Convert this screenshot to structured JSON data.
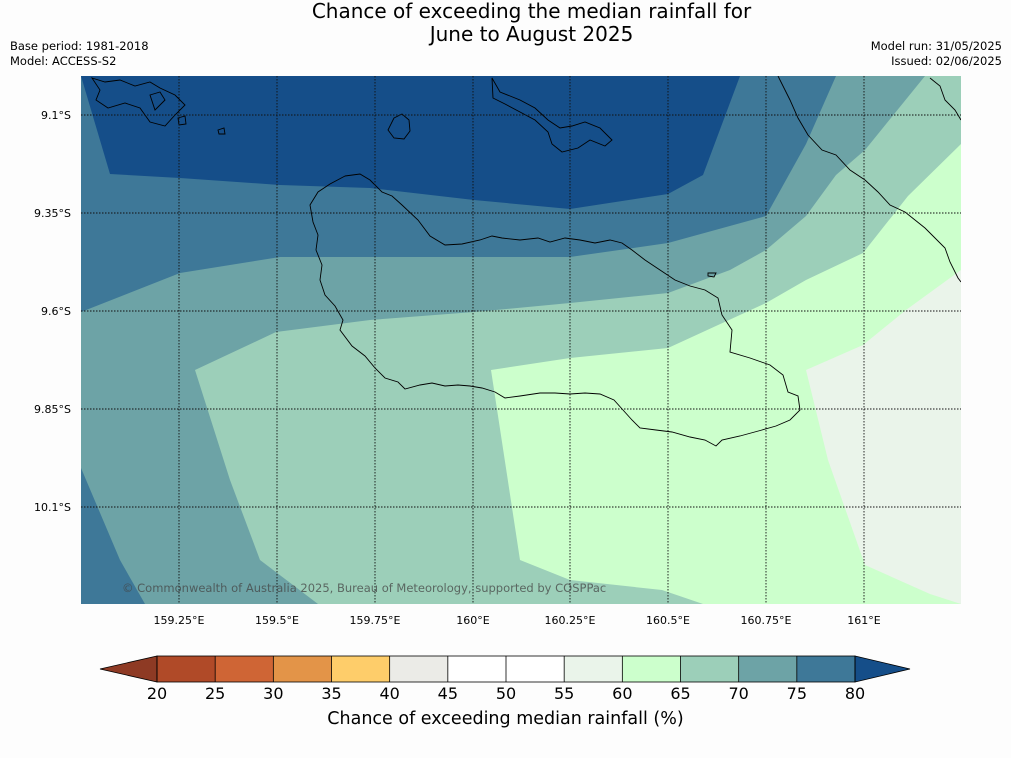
{
  "title": {
    "line1": "Chance of exceeding the median rainfall for",
    "line2": "June to August 2025"
  },
  "meta_left": {
    "base_period": "Base period: 1981-2018",
    "model": "Model: ACCESS-S2"
  },
  "meta_right": {
    "model_run": "Model run: 31/05/2025",
    "issued": "Issued: 02/06/2025"
  },
  "copyright": "© Commonwealth of Australia 2025, Bureau of Meteorology, supported by COSPPac",
  "axes": {
    "lat_ticks": [
      "9.1°S",
      "9.35°S",
      "9.6°S",
      "9.85°S",
      "10.1°S"
    ],
    "lon_ticks": [
      "159.25°E",
      "159.5°E",
      "159.75°E",
      "160°E",
      "160.25°E",
      "160.5°E",
      "160.75°E",
      "161°E"
    ]
  },
  "colorbar": {
    "title": "Chance of exceeding median rainfall (%)",
    "ticks": [
      "20",
      "25",
      "30",
      "35",
      "40",
      "45",
      "50",
      "55",
      "60",
      "65",
      "70",
      "75",
      "80"
    ],
    "colors": {
      "below_20": "#8e3a24",
      "20_25": "#b04a28",
      "25_30": "#cf6535",
      "30_35": "#e39448",
      "35_40": "#fecd6a",
      "40_45": "#ebebe7",
      "45_50": "#ffffff",
      "50_55": "#ffffff",
      "55_60": "#eaf4ea",
      "60_65": "#ccffcc",
      "65_70": "#9ccfb9",
      "70_75": "#6da3a6",
      "75_80": "#3e7898",
      "above_80": "#154e89"
    }
  }
}
